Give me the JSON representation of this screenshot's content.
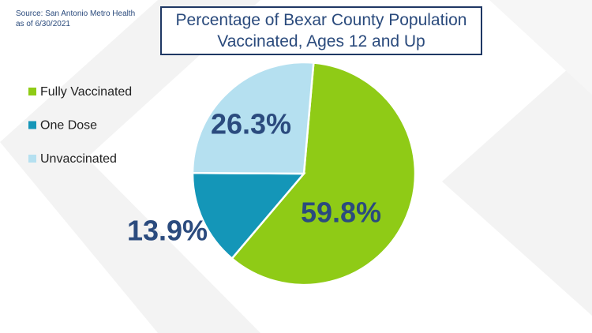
{
  "chart_data": {
    "type": "pie",
    "title": "Percentage of Bexar County Population Vaccinated, Ages 12 and Up",
    "notes": [
      "Source: San Antonio Metro Health",
      "as of 6/30/2021"
    ],
    "categories": [
      "Fully Vaccinated",
      "One Dose",
      "Unvaccinated"
    ],
    "values": [
      59.8,
      13.9,
      26.3
    ],
    "value_labels": [
      "59.8%",
      "13.9%",
      "26.3%"
    ],
    "colors": [
      "#8fcb16",
      "#1496b8",
      "#b5e0f0"
    ],
    "legend": "left"
  }
}
